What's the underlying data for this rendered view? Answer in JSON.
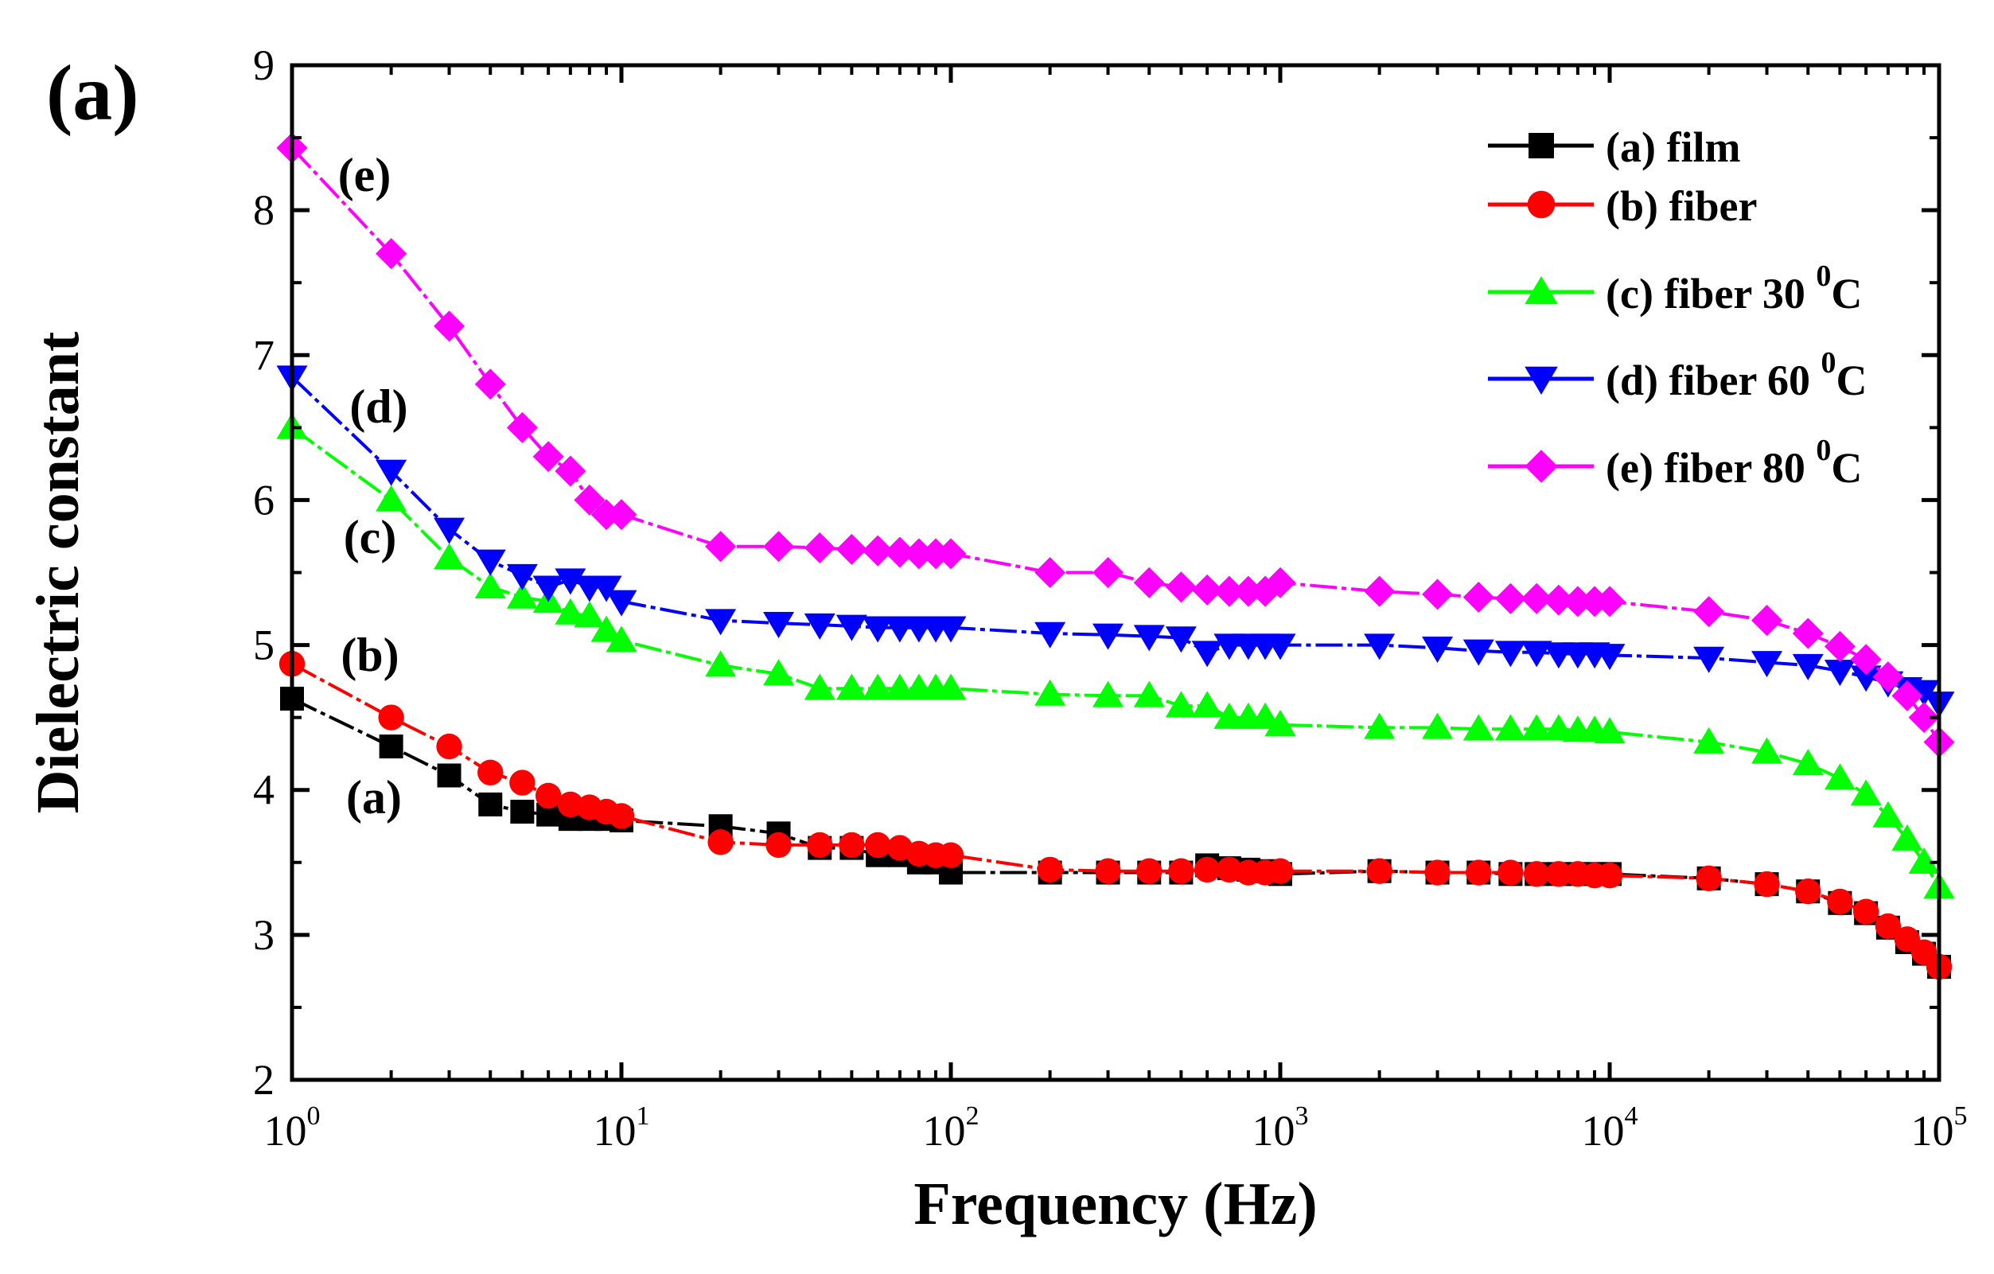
{
  "panel_label": "(a)",
  "chart_data": {
    "type": "line",
    "title": "",
    "xlabel": "Frequency (Hz)",
    "ylabel": "Dielectric constant",
    "x_scale": "log",
    "xlim": [
      1,
      100000
    ],
    "ylim": [
      2,
      9
    ],
    "x_tick_bases": [
      "10",
      "10",
      "10",
      "10",
      "10",
      "10"
    ],
    "x_tick_exponents": [
      "0",
      "1",
      "2",
      "3",
      "4",
      "5"
    ],
    "y_ticks": [
      "2",
      "3",
      "4",
      "5",
      "6",
      "7",
      "8",
      "9"
    ],
    "grid": false,
    "legend_position": "top-right",
    "series": [
      {
        "name": "(a) film",
        "legend_text": "(a) film",
        "legend_superscript": "",
        "legend_suffix": "",
        "curve_label": "(a)",
        "color": "#000000",
        "marker": "square",
        "x": [
          1,
          2,
          3,
          4,
          5,
          6,
          7,
          8,
          9,
          10,
          20,
          30,
          40,
          50,
          60,
          70,
          80,
          90,
          100,
          200,
          300,
          400,
          500,
          600,
          700,
          800,
          900,
          1000,
          2000,
          3000,
          4000,
          5000,
          6000,
          7000,
          8000,
          9000,
          10000,
          20000,
          30000,
          40000,
          50000,
          60000,
          70000,
          80000,
          90000,
          100000
        ],
        "values": [
          4.63,
          4.3,
          4.1,
          3.9,
          3.85,
          3.83,
          3.8,
          3.8,
          3.8,
          3.79,
          3.75,
          3.7,
          3.6,
          3.6,
          3.55,
          3.55,
          3.5,
          3.5,
          3.43,
          3.43,
          3.43,
          3.43,
          3.43,
          3.48,
          3.46,
          3.45,
          3.44,
          3.42,
          3.44,
          3.43,
          3.43,
          3.42,
          3.42,
          3.42,
          3.42,
          3.42,
          3.42,
          3.39,
          3.35,
          3.3,
          3.22,
          3.15,
          3.05,
          2.95,
          2.87,
          2.78
        ]
      },
      {
        "name": "(b) fiber",
        "legend_text": "(b) fiber",
        "legend_superscript": "",
        "legend_suffix": "",
        "curve_label": "(b)",
        "color": "#ff0000",
        "marker": "circle",
        "x": [
          1,
          2,
          3,
          4,
          5,
          6,
          7,
          8,
          9,
          10,
          20,
          30,
          40,
          50,
          60,
          70,
          80,
          90,
          100,
          200,
          300,
          400,
          500,
          600,
          700,
          800,
          900,
          1000,
          2000,
          3000,
          4000,
          5000,
          6000,
          7000,
          8000,
          9000,
          10000,
          20000,
          30000,
          40000,
          50000,
          60000,
          70000,
          80000,
          90000,
          100000
        ],
        "values": [
          4.87,
          4.5,
          4.3,
          4.12,
          4.05,
          3.96,
          3.9,
          3.88,
          3.85,
          3.82,
          3.64,
          3.62,
          3.62,
          3.62,
          3.62,
          3.6,
          3.56,
          3.55,
          3.55,
          3.45,
          3.44,
          3.44,
          3.44,
          3.45,
          3.45,
          3.43,
          3.43,
          3.44,
          3.44,
          3.43,
          3.43,
          3.43,
          3.42,
          3.42,
          3.42,
          3.41,
          3.41,
          3.39,
          3.35,
          3.3,
          3.23,
          3.16,
          3.06,
          2.97,
          2.88,
          2.78
        ]
      },
      {
        "name": "(c) fiber 30 0C",
        "legend_text": "(c) fiber 30 ",
        "legend_superscript": "0",
        "legend_suffix": "C",
        "curve_label": "(c)",
        "color": "#00ff00",
        "marker": "triangle-up",
        "x": [
          1,
          2,
          3,
          4,
          5,
          6,
          7,
          8,
          9,
          10,
          20,
          30,
          40,
          50,
          60,
          70,
          80,
          90,
          100,
          200,
          300,
          400,
          500,
          600,
          700,
          800,
          900,
          1000,
          2000,
          3000,
          4000,
          5000,
          6000,
          7000,
          8000,
          9000,
          10000,
          20000,
          30000,
          40000,
          50000,
          60000,
          70000,
          80000,
          90000,
          100000
        ],
        "values": [
          6.5,
          6.0,
          5.6,
          5.4,
          5.33,
          5.3,
          5.22,
          5.2,
          5.1,
          5.03,
          4.86,
          4.8,
          4.7,
          4.7,
          4.7,
          4.7,
          4.7,
          4.7,
          4.7,
          4.66,
          4.65,
          4.65,
          4.58,
          4.58,
          4.5,
          4.5,
          4.5,
          4.45,
          4.43,
          4.43,
          4.42,
          4.42,
          4.42,
          4.42,
          4.41,
          4.41,
          4.4,
          4.33,
          4.26,
          4.18,
          4.08,
          3.97,
          3.82,
          3.66,
          3.5,
          3.33
        ]
      },
      {
        "name": "(d) fiber 60 0C",
        "legend_text": "(d) fiber 60 ",
        "legend_superscript": "0",
        "legend_suffix": "C",
        "curve_label": "(d)",
        "color": "#0000ff",
        "marker": "triangle-down",
        "x": [
          1,
          2,
          3,
          4,
          5,
          6,
          7,
          8,
          9,
          10,
          20,
          30,
          40,
          50,
          60,
          70,
          80,
          90,
          100,
          200,
          300,
          400,
          500,
          600,
          700,
          800,
          900,
          1000,
          2000,
          3000,
          4000,
          5000,
          6000,
          7000,
          8000,
          9000,
          10000,
          20000,
          30000,
          40000,
          50000,
          60000,
          70000,
          80000,
          90000,
          100000
        ],
        "values": [
          6.85,
          6.2,
          5.8,
          5.58,
          5.48,
          5.4,
          5.45,
          5.4,
          5.4,
          5.3,
          5.17,
          5.15,
          5.14,
          5.13,
          5.12,
          5.12,
          5.12,
          5.12,
          5.12,
          5.08,
          5.07,
          5.06,
          5.05,
          4.95,
          5.0,
          5.0,
          5.0,
          5.0,
          5.0,
          4.98,
          4.96,
          4.95,
          4.95,
          4.94,
          4.94,
          4.94,
          4.93,
          4.91,
          4.88,
          4.86,
          4.82,
          4.78,
          4.74,
          4.7,
          4.68,
          4.6
        ]
      },
      {
        "name": "(e) fiber 80 0C",
        "legend_text": "(e) fiber 80 ",
        "legend_superscript": "0",
        "legend_suffix": "C",
        "curve_label": "(e)",
        "color": "#ff00ff",
        "marker": "diamond",
        "x": [
          1,
          2,
          3,
          4,
          5,
          6,
          7,
          8,
          9,
          10,
          20,
          30,
          40,
          50,
          60,
          70,
          80,
          90,
          100,
          200,
          300,
          400,
          500,
          600,
          700,
          800,
          900,
          1000,
          2000,
          3000,
          4000,
          5000,
          6000,
          7000,
          8000,
          9000,
          10000,
          20000,
          30000,
          40000,
          50000,
          60000,
          70000,
          80000,
          90000,
          100000
        ],
        "values": [
          8.43,
          7.7,
          7.2,
          6.8,
          6.5,
          6.3,
          6.2,
          6.0,
          5.9,
          5.9,
          5.68,
          5.68,
          5.67,
          5.66,
          5.65,
          5.64,
          5.63,
          5.63,
          5.63,
          5.5,
          5.5,
          5.43,
          5.4,
          5.38,
          5.37,
          5.37,
          5.37,
          5.43,
          5.37,
          5.35,
          5.33,
          5.32,
          5.32,
          5.31,
          5.3,
          5.3,
          5.3,
          5.23,
          5.17,
          5.08,
          4.99,
          4.9,
          4.78,
          4.65,
          4.5,
          4.33
        ]
      }
    ]
  }
}
